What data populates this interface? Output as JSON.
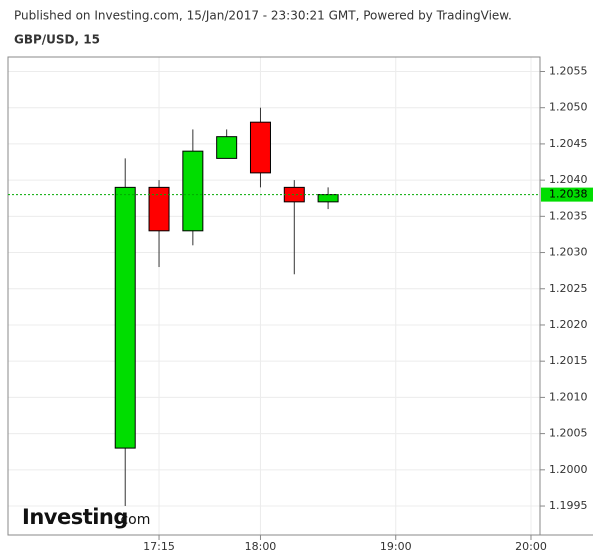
{
  "chart_data": {
    "type": "candlestick",
    "subtitle": "Published on Investing.com, 15/Jan/2017 - 23:30:21 GMT, Powered by TradingView.",
    "title": "GBP/USD, 15",
    "watermark": {
      "name": "Investing",
      "suffix": ".com"
    },
    "up_color": "#00dd00",
    "down_color": "#ff0000",
    "candles": [
      {
        "x": "17:00",
        "open": 1.2003,
        "high": 1.2043,
        "low": 1.1995,
        "close": 1.2039
      },
      {
        "x": "17:15",
        "open": 1.2039,
        "high": 1.204,
        "low": 1.2028,
        "close": 1.2033
      },
      {
        "x": "17:30",
        "open": 1.2033,
        "high": 1.2047,
        "low": 1.2031,
        "close": 1.2044
      },
      {
        "x": "17:45",
        "open": 1.2043,
        "high": 1.2047,
        "low": 1.2043,
        "close": 1.2046
      },
      {
        "x": "18:00",
        "open": 1.2048,
        "high": 1.205,
        "low": 1.2039,
        "close": 1.2041
      },
      {
        "x": "18:15",
        "open": 1.2039,
        "high": 1.204,
        "low": 1.2027,
        "close": 1.2037
      },
      {
        "x": "18:30",
        "open": 1.2037,
        "high": 1.2039,
        "low": 1.2036,
        "close": 1.2038
      }
    ],
    "current_price": 1.2038,
    "xlim": [
      "16:08",
      "20:04"
    ],
    "xticks": [
      "17:15",
      "18:00",
      "19:00",
      "20:00"
    ],
    "ylim": [
      1.1991,
      1.2057
    ],
    "yticks": [
      1.1995,
      {
        "value": 1.2,
        "label": "1.2000"
      },
      1.2005,
      {
        "value": 1.201,
        "label": "1.2010"
      },
      1.2015,
      {
        "value": 1.202,
        "label": "1.2020"
      },
      1.2025,
      {
        "value": 1.203,
        "label": "1.2030"
      },
      1.2035,
      {
        "value": 1.204,
        "label": "1.2040"
      },
      1.2045,
      {
        "value": 1.205,
        "label": "1.2050"
      },
      1.2055
    ],
    "grid": true
  }
}
